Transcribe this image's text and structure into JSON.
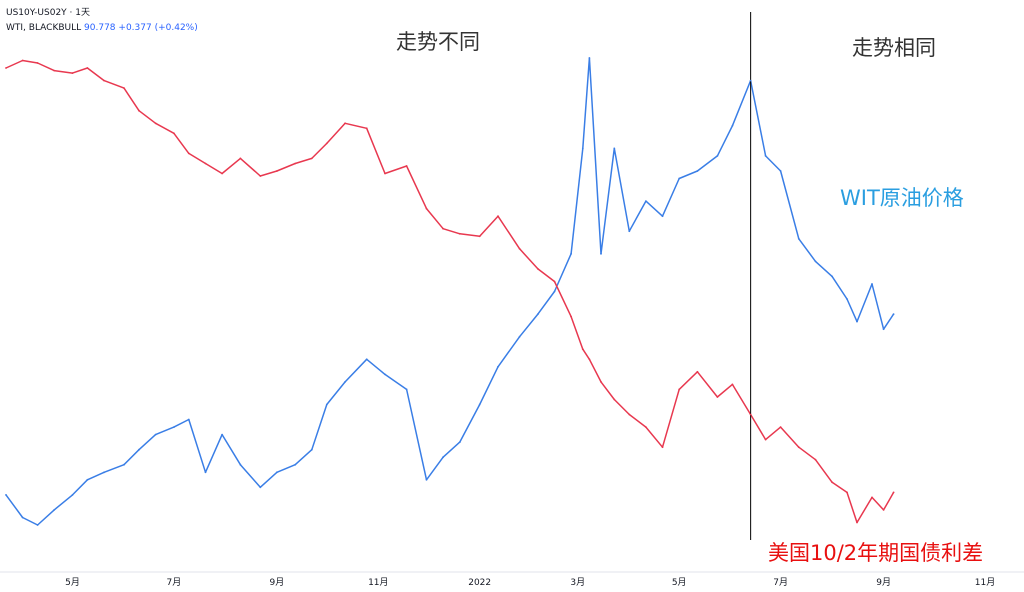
{
  "header": {
    "symbol_line": "US10Y-US02Y · 1天",
    "series2_name": "WTI, BLACKBULL",
    "series2_price": "90.778",
    "series2_change": "+0.377 (+0.42%)"
  },
  "annotations": {
    "diverge": "走势不同",
    "same": "走势相同",
    "oil": "WIT原油价格",
    "spread": "美国10/2年期国债利差"
  },
  "colors": {
    "oil": "#3a7ee6",
    "spread": "#e8384f",
    "divider": "#000000",
    "oil_text": "#2a9ee0",
    "spread_text": "#e81010"
  },
  "chart_data": {
    "type": "line",
    "x_ticks": [
      "5月",
      "7月",
      "9月",
      "11月",
      "2022",
      "3月",
      "5月",
      "7月",
      "9月",
      "11月"
    ],
    "x_tick_dates": [
      "2021-05-01",
      "2021-07-01",
      "2021-09-01",
      "2021-11-01",
      "2022-01-01",
      "2022-03-01",
      "2022-05-01",
      "2022-07-01",
      "2022-09-01",
      "2022-11-01"
    ],
    "divider_date": "2022-06-13",
    "series": [
      {
        "name": "WTI, BLACKBULL",
        "points": [
          [
            "2021-03-22",
            59
          ],
          [
            "2021-04-01",
            56
          ],
          [
            "2021-04-10",
            55
          ],
          [
            "2021-04-20",
            57
          ],
          [
            "2021-05-01",
            59
          ],
          [
            "2021-05-10",
            61
          ],
          [
            "2021-05-20",
            62
          ],
          [
            "2021-06-01",
            63
          ],
          [
            "2021-06-10",
            65
          ],
          [
            "2021-06-20",
            67
          ],
          [
            "2021-07-01",
            68
          ],
          [
            "2021-07-10",
            69
          ],
          [
            "2021-07-20",
            62
          ],
          [
            "2021-07-30",
            67
          ],
          [
            "2021-08-10",
            63
          ],
          [
            "2021-08-22",
            60
          ],
          [
            "2021-09-01",
            62
          ],
          [
            "2021-09-12",
            63
          ],
          [
            "2021-09-22",
            65
          ],
          [
            "2021-10-01",
            71
          ],
          [
            "2021-10-12",
            74
          ],
          [
            "2021-10-25",
            77
          ],
          [
            "2021-11-05",
            75
          ],
          [
            "2021-11-18",
            73
          ],
          [
            "2021-11-30",
            61
          ],
          [
            "2021-12-10",
            64
          ],
          [
            "2021-12-20",
            66
          ],
          [
            "2022-01-01",
            71
          ],
          [
            "2022-01-12",
            76
          ],
          [
            "2022-01-25",
            80
          ],
          [
            "2022-02-05",
            83
          ],
          [
            "2022-02-15",
            86
          ],
          [
            "2022-02-25",
            91
          ],
          [
            "2022-03-04",
            105
          ],
          [
            "2022-03-08",
            117
          ],
          [
            "2022-03-15",
            91
          ],
          [
            "2022-03-23",
            105
          ],
          [
            "2022-04-01",
            94
          ],
          [
            "2022-04-11",
            98
          ],
          [
            "2022-04-21",
            96
          ],
          [
            "2022-05-01",
            101
          ],
          [
            "2022-05-12",
            102
          ],
          [
            "2022-05-24",
            104
          ],
          [
            "2022-06-02",
            108
          ],
          [
            "2022-06-13",
            114
          ],
          [
            "2022-06-22",
            104
          ],
          [
            "2022-07-01",
            102
          ],
          [
            "2022-07-12",
            93
          ],
          [
            "2022-07-22",
            90
          ],
          [
            "2022-08-01",
            88
          ],
          [
            "2022-08-10",
            85
          ],
          [
            "2022-08-16",
            82
          ],
          [
            "2022-08-25",
            87
          ],
          [
            "2022-09-01",
            81
          ],
          [
            "2022-09-07",
            83
          ]
        ]
      },
      {
        "name": "US10Y-US02Y",
        "points": [
          [
            "2021-03-22",
            1.46
          ],
          [
            "2021-04-01",
            1.49
          ],
          [
            "2021-04-10",
            1.48
          ],
          [
            "2021-04-20",
            1.45
          ],
          [
            "2021-05-01",
            1.44
          ],
          [
            "2021-05-10",
            1.46
          ],
          [
            "2021-05-20",
            1.41
          ],
          [
            "2021-06-01",
            1.38
          ],
          [
            "2021-06-10",
            1.29
          ],
          [
            "2021-06-20",
            1.24
          ],
          [
            "2021-07-01",
            1.2
          ],
          [
            "2021-07-10",
            1.12
          ],
          [
            "2021-07-20",
            1.08
          ],
          [
            "2021-07-30",
            1.04
          ],
          [
            "2021-08-10",
            1.1
          ],
          [
            "2021-08-22",
            1.03
          ],
          [
            "2021-09-01",
            1.05
          ],
          [
            "2021-09-12",
            1.08
          ],
          [
            "2021-09-22",
            1.1
          ],
          [
            "2021-10-01",
            1.16
          ],
          [
            "2021-10-12",
            1.24
          ],
          [
            "2021-10-25",
            1.22
          ],
          [
            "2021-11-05",
            1.04
          ],
          [
            "2021-11-18",
            1.07
          ],
          [
            "2021-11-30",
            0.9
          ],
          [
            "2021-12-10",
            0.82
          ],
          [
            "2021-12-20",
            0.8
          ],
          [
            "2022-01-01",
            0.79
          ],
          [
            "2022-01-12",
            0.87
          ],
          [
            "2022-01-25",
            0.74
          ],
          [
            "2022-02-05",
            0.66
          ],
          [
            "2022-02-15",
            0.61
          ],
          [
            "2022-02-25",
            0.47
          ],
          [
            "2022-03-04",
            0.34
          ],
          [
            "2022-03-08",
            0.3
          ],
          [
            "2022-03-15",
            0.21
          ],
          [
            "2022-03-23",
            0.14
          ],
          [
            "2022-04-01",
            0.08
          ],
          [
            "2022-04-11",
            0.03
          ],
          [
            "2022-04-21",
            -0.05
          ],
          [
            "2022-05-01",
            0.18
          ],
          [
            "2022-05-12",
            0.25
          ],
          [
            "2022-05-24",
            0.15
          ],
          [
            "2022-06-02",
            0.2
          ],
          [
            "2022-06-13",
            0.08
          ],
          [
            "2022-06-22",
            -0.02
          ],
          [
            "2022-07-01",
            0.03
          ],
          [
            "2022-07-12",
            -0.05
          ],
          [
            "2022-07-22",
            -0.1
          ],
          [
            "2022-08-01",
            -0.19
          ],
          [
            "2022-08-10",
            -0.23
          ],
          [
            "2022-08-16",
            -0.35
          ],
          [
            "2022-08-25",
            -0.25
          ],
          [
            "2022-09-01",
            -0.3
          ],
          [
            "2022-09-07",
            -0.23
          ]
        ]
      }
    ]
  }
}
